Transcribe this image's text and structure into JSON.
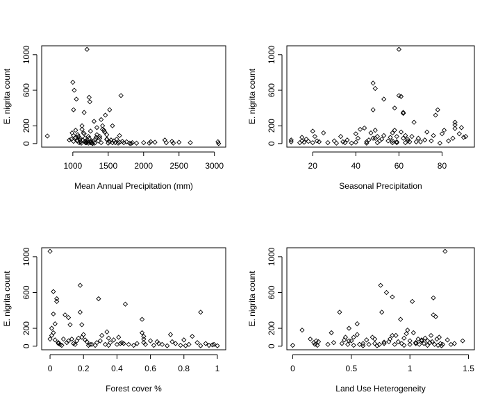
{
  "chart_data": [
    {
      "type": "scatter",
      "xlabel": "Mean Annual Precipitation (mm)",
      "ylabel": "E. nigrita count",
      "xlim": [
        560,
        3160
      ],
      "ylim": [
        -40,
        1100
      ],
      "xticks": [
        1000,
        1500,
        2000,
        2500,
        3000
      ],
      "yticks": [
        0,
        200,
        600,
        1000
      ],
      "x": [
        640,
        950,
        980,
        990,
        1000,
        1010,
        1020,
        1030,
        1040,
        1050,
        1060,
        1070,
        1080,
        1090,
        1100,
        1110,
        1120,
        1130,
        1140,
        1150,
        1160,
        1170,
        1180,
        1190,
        1200,
        1210,
        1220,
        1230,
        1240,
        1250,
        1260,
        1270,
        1280,
        1300,
        1320,
        1340,
        1360,
        1380,
        1400,
        1420,
        1440,
        1460,
        1480,
        1500,
        1520,
        1540,
        1560,
        1580,
        1600,
        1620,
        1640,
        1660,
        1680,
        1700,
        1720,
        1760,
        1800,
        1820,
        1840,
        1900,
        2000,
        2080,
        2100,
        2160,
        2300,
        2320,
        2400,
        2420,
        2500,
        2660,
        3050,
        3060,
        1010,
        1040,
        1100,
        1130,
        1160,
        1180,
        1230,
        1250,
        1290,
        1310,
        1340,
        1380,
        1400,
        1450,
        1480,
        1520,
        1560,
        1660,
        1220,
        1110,
        1140,
        1260,
        1330,
        1420,
        1480,
        1010,
        1070,
        1190
      ],
      "y": [
        85,
        40,
        50,
        120,
        690,
        380,
        600,
        60,
        150,
        500,
        30,
        100,
        80,
        10,
        60,
        20,
        5,
        160,
        40,
        120,
        350,
        60,
        30,
        15,
        1060,
        20,
        80,
        520,
        470,
        10,
        30,
        5,
        0,
        250,
        50,
        100,
        30,
        60,
        10,
        200,
        150,
        320,
        100,
        5,
        380,
        40,
        10,
        30,
        10,
        50,
        5,
        15,
        540,
        25,
        10,
        20,
        5,
        0,
        10,
        5,
        10,
        5,
        20,
        15,
        40,
        10,
        25,
        5,
        15,
        10,
        20,
        0,
        90,
        70,
        40,
        200,
        110,
        10,
        60,
        140,
        30,
        5,
        180,
        80,
        270,
        130,
        45,
        20,
        200,
        90,
        5,
        20,
        40,
        15,
        70,
        160,
        50,
        25,
        35,
        10
      ]
    },
    {
      "type": "scatter",
      "xlabel": "Seasonal Precipitation",
      "ylabel": "E. nigrita count",
      "xlim": [
        8,
        95
      ],
      "ylim": [
        -40,
        1100
      ],
      "xticks": [
        20,
        40,
        60,
        80
      ],
      "yticks": [
        0,
        200,
        600,
        1000
      ],
      "x": [
        10,
        10,
        14,
        15,
        15,
        16,
        17,
        18,
        20,
        20,
        21,
        22,
        23,
        25,
        27,
        30,
        31,
        33,
        34,
        35,
        36,
        38,
        40,
        40,
        41,
        42,
        44,
        45,
        45,
        46,
        47,
        48,
        48,
        49,
        49,
        49,
        50,
        50,
        51,
        52,
        53,
        55,
        56,
        57,
        57,
        58,
        58,
        59,
        59,
        60,
        60,
        61,
        62,
        62,
        62,
        63,
        63,
        64,
        64,
        66,
        67,
        68,
        69,
        70,
        72,
        73,
        75,
        76,
        77,
        78,
        79,
        80,
        81,
        83,
        85,
        86,
        86,
        86,
        88,
        89,
        90,
        91,
        57,
        61,
        65,
        48,
        53,
        59
      ],
      "y": [
        40,
        20,
        10,
        30,
        70,
        15,
        50,
        25,
        140,
        10,
        80,
        30,
        20,
        120,
        10,
        30,
        5,
        80,
        20,
        10,
        40,
        5,
        110,
        15,
        60,
        160,
        175,
        20,
        5,
        40,
        120,
        380,
        680,
        60,
        150,
        620,
        10,
        80,
        30,
        50,
        500,
        30,
        70,
        120,
        10,
        400,
        150,
        80,
        20,
        1060,
        540,
        530,
        340,
        350,
        60,
        10,
        90,
        30,
        50,
        80,
        240,
        20,
        60,
        20,
        40,
        130,
        30,
        90,
        320,
        380,
        5,
        110,
        150,
        30,
        60,
        170,
        210,
        240,
        110,
        180,
        70,
        80,
        30,
        130,
        20,
        60,
        90,
        10
      ]
    },
    {
      "type": "scatter",
      "xlabel": "Forest cover %",
      "ylabel": "E. nigrita count",
      "xlim": [
        -0.05,
        1.05
      ],
      "ylim": [
        -40,
        1100
      ],
      "xticks": [
        0.0,
        0.2,
        0.4,
        0.6,
        0.8,
        1.0
      ],
      "yticks": [
        0,
        200,
        600,
        1000
      ],
      "x": [
        0.0,
        0.0,
        0.01,
        0.01,
        0.02,
        0.02,
        0.03,
        0.03,
        0.04,
        0.04,
        0.05,
        0.06,
        0.07,
        0.08,
        0.09,
        0.1,
        0.11,
        0.12,
        0.13,
        0.14,
        0.15,
        0.16,
        0.17,
        0.18,
        0.18,
        0.19,
        0.2,
        0.21,
        0.22,
        0.23,
        0.25,
        0.27,
        0.28,
        0.29,
        0.3,
        0.31,
        0.33,
        0.34,
        0.35,
        0.36,
        0.38,
        0.4,
        0.41,
        0.42,
        0.43,
        0.45,
        0.47,
        0.5,
        0.52,
        0.55,
        0.55,
        0.56,
        0.56,
        0.57,
        0.6,
        0.62,
        0.64,
        0.65,
        0.67,
        0.7,
        0.72,
        0.75,
        0.78,
        0.8,
        0.83,
        0.85,
        0.88,
        0.9,
        0.9,
        0.93,
        0.95,
        0.98,
        1.0,
        0.02,
        0.05,
        0.11,
        0.19,
        0.24,
        0.35,
        0.44,
        0.56,
        0.73,
        0.81,
        0.97
      ],
      "y": [
        1060,
        80,
        120,
        200,
        610,
        360,
        250,
        70,
        500,
        530,
        30,
        20,
        10,
        80,
        350,
        40,
        320,
        240,
        80,
        30,
        20,
        60,
        90,
        380,
        680,
        240,
        130,
        70,
        50,
        10,
        20,
        10,
        40,
        530,
        60,
        120,
        20,
        160,
        10,
        40,
        70,
        20,
        100,
        30,
        40,
        470,
        20,
        10,
        30,
        300,
        150,
        80,
        40,
        20,
        60,
        10,
        50,
        30,
        20,
        5,
        130,
        30,
        10,
        70,
        20,
        110,
        40,
        380,
        5,
        30,
        10,
        20,
        5,
        150,
        40,
        60,
        100,
        20,
        90,
        30,
        110,
        50,
        5,
        15
      ]
    },
    {
      "type": "scatter",
      "xlabel": "Land Use Heterogeneity",
      "ylabel": "E. nigrita count",
      "xlim": [
        -0.05,
        1.55
      ],
      "ylim": [
        -40,
        1100
      ],
      "xticks": [
        0.0,
        0.5,
        1.0,
        1.5
      ],
      "yticks": [
        0,
        200,
        600,
        1000
      ],
      "x": [
        0.0,
        0.08,
        0.15,
        0.18,
        0.19,
        0.2,
        0.21,
        0.3,
        0.33,
        0.35,
        0.4,
        0.42,
        0.44,
        0.45,
        0.47,
        0.48,
        0.5,
        0.52,
        0.55,
        0.55,
        0.57,
        0.6,
        0.63,
        0.65,
        0.68,
        0.7,
        0.72,
        0.74,
        0.75,
        0.76,
        0.78,
        0.8,
        0.82,
        0.83,
        0.85,
        0.87,
        0.88,
        0.9,
        0.92,
        0.93,
        0.95,
        0.97,
        1.0,
        1.02,
        1.03,
        1.05,
        1.07,
        1.08,
        1.1,
        1.12,
        1.13,
        1.15,
        1.17,
        1.18,
        1.19,
        1.2,
        1.2,
        1.21,
        1.22,
        1.23,
        1.24,
        1.25,
        1.26,
        1.28,
        1.3,
        1.32,
        1.35,
        1.38,
        1.45,
        1.0,
        0.98,
        1.05,
        0.85,
        0.6,
        0.48,
        0.52,
        0.7,
        0.95,
        1.15,
        1.27,
        0.22,
        0.78,
        1.1
      ],
      "y": [
        10,
        180,
        80,
        40,
        20,
        60,
        10,
        20,
        150,
        40,
        380,
        30,
        70,
        100,
        20,
        200,
        60,
        10,
        250,
        130,
        20,
        30,
        70,
        20,
        100,
        80,
        5,
        20,
        680,
        380,
        30,
        600,
        50,
        80,
        550,
        20,
        120,
        50,
        300,
        30,
        90,
        140,
        20,
        500,
        150,
        30,
        80,
        20,
        60,
        30,
        90,
        10,
        40,
        120,
        50,
        350,
        540,
        20,
        330,
        80,
        10,
        100,
        30,
        20,
        1060,
        70,
        20,
        30,
        60,
        60,
        180,
        40,
        120,
        5,
        60,
        100,
        30,
        10,
        60,
        5,
        50,
        45,
        70
      ]
    }
  ]
}
